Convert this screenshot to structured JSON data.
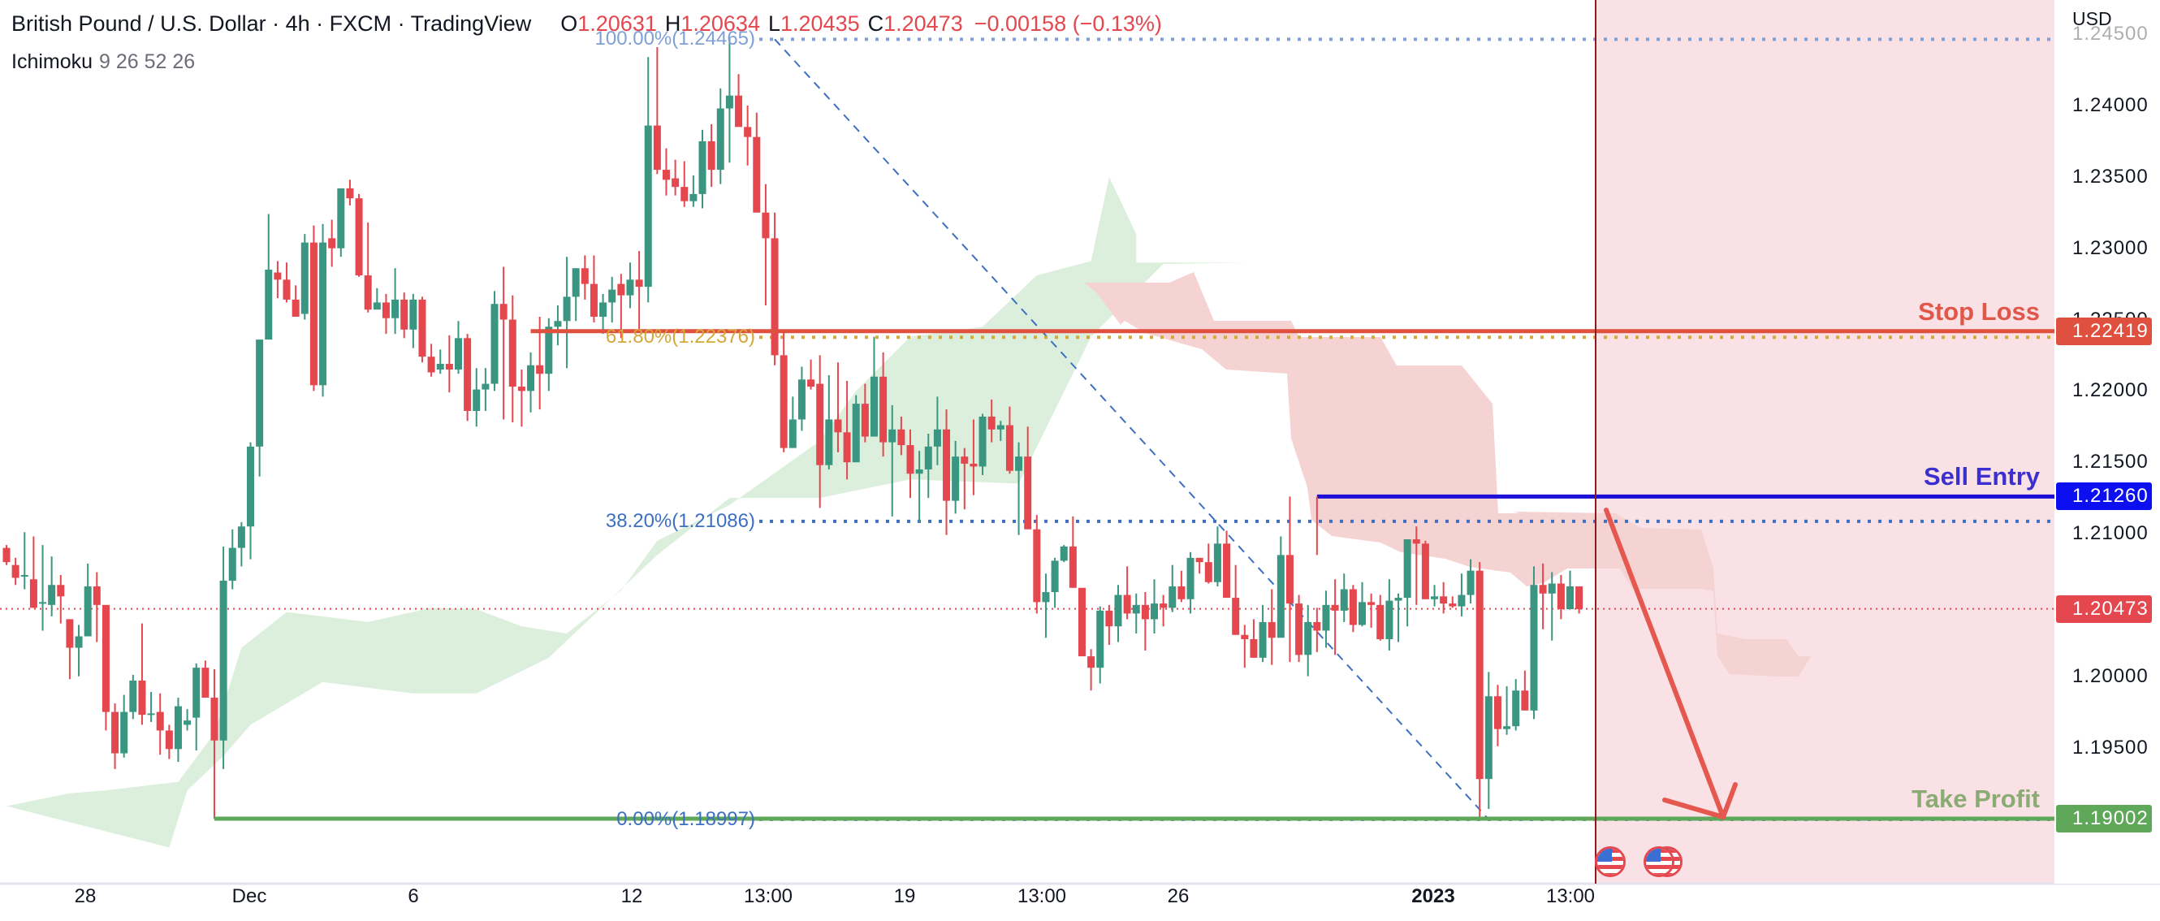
{
  "header": {
    "title": "British Pound / U.S. Dollar · 4h · FXCM · TradingView",
    "ohlc": {
      "open_label": "O",
      "open": "1.20631",
      "high_label": "H",
      "high": "1.20634",
      "low_label": "L",
      "low": "1.20435",
      "close_label": "C",
      "close": "1.20473",
      "change": "−0.00158 (−0.13%)"
    },
    "indicator": {
      "name": "Ichimoku",
      "params": "9 26 52 26"
    }
  },
  "price_axis": {
    "currency": "USD",
    "ticks": [
      "1.24500",
      "1.24000",
      "1.23500",
      "1.23000",
      "1.22500",
      "1.22000",
      "1.21500",
      "1.21000",
      "1.20500",
      "1.20000",
      "1.19500"
    ],
    "badges": [
      {
        "name": "stop-loss-price-badge",
        "value": "1.22419",
        "color": "#e0503f"
      },
      {
        "name": "sell-entry-price-badge",
        "value": "1.21260",
        "color": "#0c0ff0"
      },
      {
        "name": "last-price-badge",
        "value": "1.20473",
        "color": "#e5474f"
      },
      {
        "name": "take-profit-price-badge",
        "value": "1.19002",
        "color": "#5fa85a"
      }
    ]
  },
  "time_axis": {
    "ticks": [
      {
        "label": "28",
        "x": 105
      },
      {
        "label": "Dec",
        "x": 307
      },
      {
        "label": "6",
        "x": 509
      },
      {
        "label": "12",
        "x": 778
      },
      {
        "label": "13:00",
        "x": 946
      },
      {
        "label": "19",
        "x": 1114
      },
      {
        "label": "13:00",
        "x": 1283
      },
      {
        "label": "26",
        "x": 1451
      },
      {
        "label": "2023",
        "x": 1765,
        "bold": true
      },
      {
        "label": "13:00",
        "x": 1934
      }
    ]
  },
  "annotations": {
    "stop_loss": {
      "label": "Stop Loss",
      "price": 1.22419,
      "color": "#e0574a"
    },
    "sell_entry": {
      "label": "Sell Entry",
      "price": 1.2126,
      "color": "#3b2fd0"
    },
    "take_profit": {
      "label": "Take Profit",
      "price": 1.19002,
      "color": "#8aac74"
    },
    "fib": [
      {
        "label": "100.00%(1.24465)",
        "price": 1.24465,
        "color": "#7ea0d6"
      },
      {
        "label": "61.80%(1.22376)",
        "price": 1.22376,
        "color": "#d4a83a"
      },
      {
        "label": "38.20%(1.21086)",
        "price": 1.21086,
        "color": "#3d6fc2"
      },
      {
        "label": "0.00%(1.18997)",
        "price": 1.18997,
        "color": "#3d6fc2"
      }
    ],
    "events": [
      {
        "type": "us-flag"
      },
      {
        "type": "us-flag-stack"
      }
    ]
  },
  "colors": {
    "up": "#3a9680",
    "down": "#e5474f",
    "kumo_bull": "#dcefdc",
    "kumo_bear": "#f6d3d3",
    "forecast_zone": "#f9e1e5",
    "vline": "#8a1c1c",
    "arrow": "#e4584f"
  },
  "chart_data": {
    "type": "candlestick",
    "title": "British Pound / U.S. Dollar · 4h · FXCM",
    "xlabel": "",
    "ylabel": "USD",
    "ylim": [
      1.1845,
      1.2475
    ],
    "x_ticks": [
      "28",
      "Dec",
      "6",
      "12",
      "13:00",
      "19",
      "13:00",
      "26",
      "2023",
      "13:00"
    ],
    "y_ticks": [
      1.245,
      1.24,
      1.235,
      1.23,
      1.225,
      1.22,
      1.215,
      1.21,
      1.205,
      1.2,
      1.195
    ],
    "candles_ohlc": [
      [
        1.209,
        1.2092,
        1.2078,
        1.208
      ],
      [
        1.2078,
        1.2083,
        1.2064,
        1.2069
      ],
      [
        1.2071,
        1.2101,
        1.2061,
        1.2071
      ],
      [
        1.2068,
        1.2098,
        1.2048,
        1.2048
      ],
      [
        1.2052,
        1.2092,
        1.2032,
        1.2052
      ],
      [
        1.205,
        1.2084,
        1.2042,
        1.2064
      ],
      [
        1.2064,
        1.2071,
        1.2037,
        1.2056
      ],
      [
        1.204,
        1.204,
        1.1998,
        1.202
      ],
      [
        1.202,
        1.2036,
        1.2,
        1.2028
      ],
      [
        1.2028,
        1.2079,
        1.2028,
        1.2063
      ],
      [
        1.2063,
        1.2073,
        1.2024,
        1.205
      ],
      [
        1.205,
        1.205,
        1.1962,
        1.1975
      ],
      [
        1.1975,
        1.1981,
        1.1935,
        1.1946
      ],
      [
        1.1946,
        1.1987,
        1.1943,
        1.1975
      ],
      [
        1.1975,
        1.2001,
        1.197,
        1.1997
      ],
      [
        1.1997,
        1.2037,
        1.1966,
        1.1973
      ],
      [
        1.1973,
        1.1989,
        1.1968,
        1.1974
      ],
      [
        1.1975,
        1.1988,
        1.1945,
        1.1962
      ],
      [
        1.1962,
        1.1966,
        1.1942,
        1.1949
      ],
      [
        1.1949,
        1.1985,
        1.194,
        1.1979
      ],
      [
        1.1966,
        1.1977,
        1.1962,
        1.1969
      ],
      [
        1.1971,
        1.2009,
        1.1948,
        1.2006
      ],
      [
        1.2006,
        1.2011,
        1.1985,
        1.1985
      ],
      [
        1.1985,
        1.2005,
        1.19,
        1.1955
      ],
      [
        1.1955,
        1.2091,
        1.1935,
        1.2067
      ],
      [
        1.2067,
        1.2103,
        1.2061,
        1.209
      ],
      [
        1.209,
        1.2108,
        1.2077,
        1.2105
      ],
      [
        1.2105,
        1.2164,
        1.2082,
        1.2161
      ],
      [
        1.2161,
        1.2231,
        1.214,
        1.2236
      ],
      [
        1.2236,
        1.2324,
        1.2246,
        1.2285
      ],
      [
        1.2283,
        1.2291,
        1.2265,
        1.2278
      ],
      [
        1.2278,
        1.229,
        1.2262,
        1.2264
      ],
      [
        1.2264,
        1.2274,
        1.2253,
        1.2252
      ],
      [
        1.2254,
        1.231,
        1.225,
        1.2304
      ],
      [
        1.2304,
        1.2316,
        1.22,
        1.2204
      ],
      [
        1.2204,
        1.2317,
        1.2196,
        1.2304
      ],
      [
        1.2307,
        1.232,
        1.2287,
        1.23
      ],
      [
        1.23,
        1.2327,
        1.2294,
        1.2342
      ],
      [
        1.2342,
        1.2348,
        1.233,
        1.2335
      ],
      [
        1.2335,
        1.2338,
        1.228,
        1.2281
      ],
      [
        1.2281,
        1.2318,
        1.2255,
        1.2257
      ],
      [
        1.2257,
        1.2272,
        1.2258,
        1.2262
      ],
      [
        1.2262,
        1.2268,
        1.224,
        1.2251
      ],
      [
        1.2251,
        1.2286,
        1.224,
        1.2264
      ],
      [
        1.2264,
        1.2269,
        1.2237,
        1.2243
      ],
      [
        1.2243,
        1.2268,
        1.223,
        1.2264
      ],
      [
        1.2264,
        1.2266,
        1.222,
        1.2224
      ],
      [
        1.2224,
        1.2233,
        1.221,
        1.2213
      ],
      [
        1.2215,
        1.2229,
        1.2212,
        1.2219
      ],
      [
        1.2219,
        1.2239,
        1.2199,
        1.2215
      ],
      [
        1.2215,
        1.2249,
        1.2212,
        1.2237
      ],
      [
        1.2237,
        1.224,
        1.2179,
        1.2186
      ],
      [
        1.2186,
        1.2216,
        1.2175,
        1.2201
      ],
      [
        1.2201,
        1.2216,
        1.2186,
        1.2205
      ],
      [
        1.2205,
        1.227,
        1.22,
        1.2261
      ],
      [
        1.2261,
        1.2287,
        1.218,
        1.225
      ],
      [
        1.225,
        1.2267,
        1.2178,
        1.2203
      ],
      [
        1.2203,
        1.2215,
        1.2175,
        1.22
      ],
      [
        1.22,
        1.2227,
        1.2185,
        1.2218
      ],
      [
        1.2218,
        1.2252,
        1.2187,
        1.2212
      ],
      [
        1.2212,
        1.2251,
        1.22,
        1.2245
      ],
      [
        1.2245,
        1.226,
        1.2232,
        1.2249
      ],
      [
        1.2249,
        1.2294,
        1.2216,
        1.2266
      ],
      [
        1.2266,
        1.2286,
        1.2249,
        1.2286
      ],
      [
        1.2286,
        1.2295,
        1.2264,
        1.2275
      ],
      [
        1.2275,
        1.2295,
        1.2248,
        1.2252
      ],
      [
        1.2252,
        1.2268,
        1.224,
        1.2262
      ],
      [
        1.2262,
        1.228,
        1.2248,
        1.2271
      ],
      [
        1.2275,
        1.2282,
        1.2237,
        1.2267
      ],
      [
        1.2267,
        1.229,
        1.2258,
        1.2278
      ],
      [
        1.2278,
        1.2298,
        1.2243,
        1.2273
      ],
      [
        1.2273,
        1.2434,
        1.2262,
        1.2386
      ],
      [
        1.2386,
        1.2441,
        1.2352,
        1.2355
      ],
      [
        1.2355,
        1.237,
        1.2337,
        1.2348
      ],
      [
        1.2349,
        1.2362,
        1.2337,
        1.2343
      ],
      [
        1.2343,
        1.2361,
        1.2329,
        1.2333
      ],
      [
        1.2333,
        1.2351,
        1.2329,
        1.2338
      ],
      [
        1.2338,
        1.2383,
        1.2328,
        1.2375
      ],
      [
        1.2375,
        1.2387,
        1.2343,
        1.2355
      ],
      [
        1.2355,
        1.2412,
        1.2345,
        1.2398
      ],
      [
        1.2398,
        1.2448,
        1.236,
        1.2407
      ],
      [
        1.2407,
        1.2422,
        1.2395,
        1.2385
      ],
      [
        1.2385,
        1.24,
        1.2358,
        1.2378
      ],
      [
        1.2378,
        1.2395,
        1.233,
        1.2325
      ],
      [
        1.2325,
        1.2345,
        1.226,
        1.2307
      ],
      [
        1.2307,
        1.2325,
        1.2218,
        1.2225
      ],
      [
        1.2225,
        1.2243,
        1.2157,
        1.216
      ],
      [
        1.216,
        1.2196,
        1.216,
        1.218
      ],
      [
        1.218,
        1.2217,
        1.2172,
        1.2208
      ],
      [
        1.2208,
        1.2222,
        1.2201,
        1.2203
      ],
      [
        1.2205,
        1.2225,
        1.2118,
        1.2148
      ],
      [
        1.2148,
        1.2211,
        1.2145,
        1.218
      ],
      [
        1.218,
        1.222,
        1.2157,
        1.2171
      ],
      [
        1.2171,
        1.2207,
        1.2138,
        1.215
      ],
      [
        1.215,
        1.2197,
        1.215,
        1.2191
      ],
      [
        1.2191,
        1.2205,
        1.2164,
        1.2168
      ],
      [
        1.2168,
        1.2238,
        1.2175,
        1.221
      ],
      [
        1.221,
        1.2227,
        1.2154,
        1.2164
      ],
      [
        1.2164,
        1.219,
        1.2112,
        1.2173
      ],
      [
        1.2173,
        1.2182,
        1.2155,
        1.2162
      ],
      [
        1.2162,
        1.2173,
        1.2125,
        1.2142
      ],
      [
        1.2142,
        1.2158,
        1.2108,
        1.2145
      ],
      [
        1.2145,
        1.217,
        1.2125,
        1.2161
      ],
      [
        1.2161,
        1.2196,
        1.2148,
        1.2173
      ],
      [
        1.2173,
        1.2187,
        1.2099,
        1.2123
      ],
      [
        1.2123,
        1.2165,
        1.2114,
        1.2154
      ],
      [
        1.2154,
        1.216,
        1.2117,
        1.2149
      ],
      [
        1.2149,
        1.218,
        1.2127,
        1.2147
      ],
      [
        1.2147,
        1.2184,
        1.2141,
        1.2182
      ],
      [
        1.2182,
        1.2194,
        1.2164,
        1.2173
      ],
      [
        1.2173,
        1.2179,
        1.2165,
        1.2176
      ],
      [
        1.2176,
        1.2189,
        1.2142,
        1.2144
      ],
      [
        1.2144,
        1.2164,
        1.2099,
        1.2154
      ],
      [
        1.2154,
        1.2175,
        1.2139,
        1.2103
      ],
      [
        1.2103,
        1.2113,
        1.2044,
        1.2052
      ],
      [
        1.2052,
        1.2072,
        1.2027,
        1.2059
      ],
      [
        1.2059,
        1.2083,
        1.2048,
        1.2081
      ],
      [
        1.2081,
        1.2092,
        1.208,
        1.2091
      ],
      [
        1.2091,
        1.2112,
        1.2062,
        1.2062
      ],
      [
        1.2062,
        1.2061,
        1.2017,
        1.2014
      ],
      [
        1.2014,
        1.2019,
        1.199,
        1.2006
      ],
      [
        1.2006,
        1.2049,
        1.1995,
        1.2046
      ],
      [
        1.2046,
        1.205,
        1.2022,
        1.2035
      ],
      [
        1.2035,
        1.2064,
        1.2024,
        1.2057
      ],
      [
        1.2057,
        1.2077,
        1.204,
        1.2044
      ],
      [
        1.2044,
        1.2058,
        1.203,
        1.205
      ],
      [
        1.205,
        1.2059,
        1.2018,
        1.204
      ],
      [
        1.204,
        1.2068,
        1.203,
        1.2051
      ],
      [
        1.2051,
        1.2057,
        1.2035,
        1.2048
      ],
      [
        1.2048,
        1.2078,
        1.2045,
        1.2063
      ],
      [
        1.2063,
        1.2074,
        1.2052,
        1.2054
      ],
      [
        1.2054,
        1.2087,
        1.2044,
        1.2083
      ],
      [
        1.2083,
        1.2083,
        1.2072,
        1.208
      ],
      [
        1.208,
        1.2093,
        1.2065,
        1.2066
      ],
      [
        1.2066,
        1.2105,
        1.2063,
        1.2093
      ],
      [
        1.2093,
        1.2102,
        1.2061,
        1.2055
      ],
      [
        1.2055,
        1.2078,
        1.2043,
        1.2029
      ],
      [
        1.2029,
        1.2036,
        1.2006,
        1.2026
      ],
      [
        1.2026,
        1.204,
        1.2013,
        1.2013
      ],
      [
        1.2013,
        1.205,
        1.201,
        1.2038
      ],
      [
        1.2038,
        1.2061,
        1.2008,
        1.2027
      ],
      [
        1.2027,
        1.2098,
        1.2031,
        1.2085
      ],
      [
        1.2085,
        1.2126,
        1.201,
        1.2051
      ],
      [
        1.2051,
        1.2057,
        1.201,
        1.2015
      ],
      [
        1.2015,
        1.205,
        1.2,
        1.2038
      ],
      [
        1.2038,
        1.2048,
        1.2017,
        1.2032
      ],
      [
        1.2032,
        1.206,
        1.202,
        1.205
      ],
      [
        1.205,
        1.2068,
        1.2015,
        1.2046
      ],
      [
        1.2046,
        1.2072,
        1.2038,
        1.2061
      ],
      [
        1.2061,
        1.2064,
        1.2031,
        1.2036
      ],
      [
        1.2036,
        1.2066,
        1.2035,
        1.2052
      ],
      [
        1.2052,
        1.2058,
        1.2034,
        1.205
      ],
      [
        1.205,
        1.2057,
        1.2025,
        1.2026
      ],
      [
        1.2026,
        1.2068,
        1.2018,
        1.2053
      ],
      [
        1.2053,
        1.2058,
        1.2024,
        1.2055
      ],
      [
        1.2055,
        1.2082,
        1.2035,
        1.2096
      ],
      [
        1.2096,
        1.2105,
        1.205,
        1.2093
      ],
      [
        1.2093,
        1.2095,
        1.2065,
        1.2054
      ],
      [
        1.2054,
        1.2064,
        1.2049,
        1.2056
      ],
      [
        1.2056,
        1.2066,
        1.2044,
        1.2051
      ],
      [
        1.2051,
        1.2056,
        1.2048,
        1.2049
      ],
      [
        1.2049,
        1.2072,
        1.2042,
        1.2057
      ],
      [
        1.2057,
        1.2082,
        1.2051,
        1.2074
      ],
      [
        1.2074,
        1.208,
        1.19,
        1.1928
      ],
      [
        1.1928,
        1.2003,
        1.1907,
        1.1986
      ],
      [
        1.1986,
        1.1994,
        1.1951,
        1.1963
      ],
      [
        1.1963,
        1.1993,
        1.1959,
        1.1965
      ],
      [
        1.1965,
        1.1998,
        1.1962,
        1.199
      ],
      [
        1.199,
        1.2004,
        1.1982,
        1.1976
      ],
      [
        1.1976,
        1.2077,
        1.197,
        1.2064
      ],
      [
        1.2064,
        1.2079,
        1.2033,
        1.2058
      ],
      [
        1.2058,
        1.2073,
        1.2025,
        1.2065
      ],
      [
        1.2065,
        1.2071,
        1.204,
        1.2047
      ],
      [
        1.2047,
        1.2074,
        1.205,
        1.2063
      ],
      [
        1.2063,
        1.2063,
        1.2044,
        1.2047
      ]
    ],
    "kumo_bull_upper": [
      [
        0,
        1.1909
      ],
      [
        7,
        1.1918
      ],
      [
        11,
        1.192
      ],
      [
        19,
        1.1926
      ],
      [
        23,
        1.196
      ],
      [
        26,
        1.202
      ],
      [
        31,
        1.2045
      ],
      [
        40,
        1.2038
      ],
      [
        47,
        1.2048
      ],
      [
        52,
        1.2047
      ],
      [
        57,
        1.2035
      ],
      [
        62,
        1.203
      ],
      [
        68,
        1.206
      ],
      [
        72,
        1.2095
      ],
      [
        80,
        1.212
      ],
      [
        90,
        1.2165
      ],
      [
        94,
        1.22
      ],
      [
        100,
        1.2238
      ],
      [
        108,
        1.2245
      ],
      [
        114,
        1.2281
      ],
      [
        120,
        1.2291
      ],
      [
        122,
        1.235
      ],
      [
        125,
        1.231
      ],
      [
        125,
        1.229
      ],
      [
        138,
        1.229
      ]
    ],
    "kumo_bull_lower": [
      [
        138,
        1.229
      ],
      [
        128,
        1.2289
      ],
      [
        120,
        1.2238
      ],
      [
        112,
        1.2135
      ],
      [
        100,
        1.2138
      ],
      [
        90,
        1.2125
      ],
      [
        80,
        1.2125
      ],
      [
        72,
        1.2085
      ],
      [
        60,
        1.2013
      ],
      [
        52,
        1.1988
      ],
      [
        45,
        1.1988
      ],
      [
        35,
        1.1996
      ],
      [
        27,
        1.1966
      ],
      [
        24,
        1.1944
      ],
      [
        20,
        1.192
      ],
      [
        18,
        1.188
      ]
    ]
  }
}
